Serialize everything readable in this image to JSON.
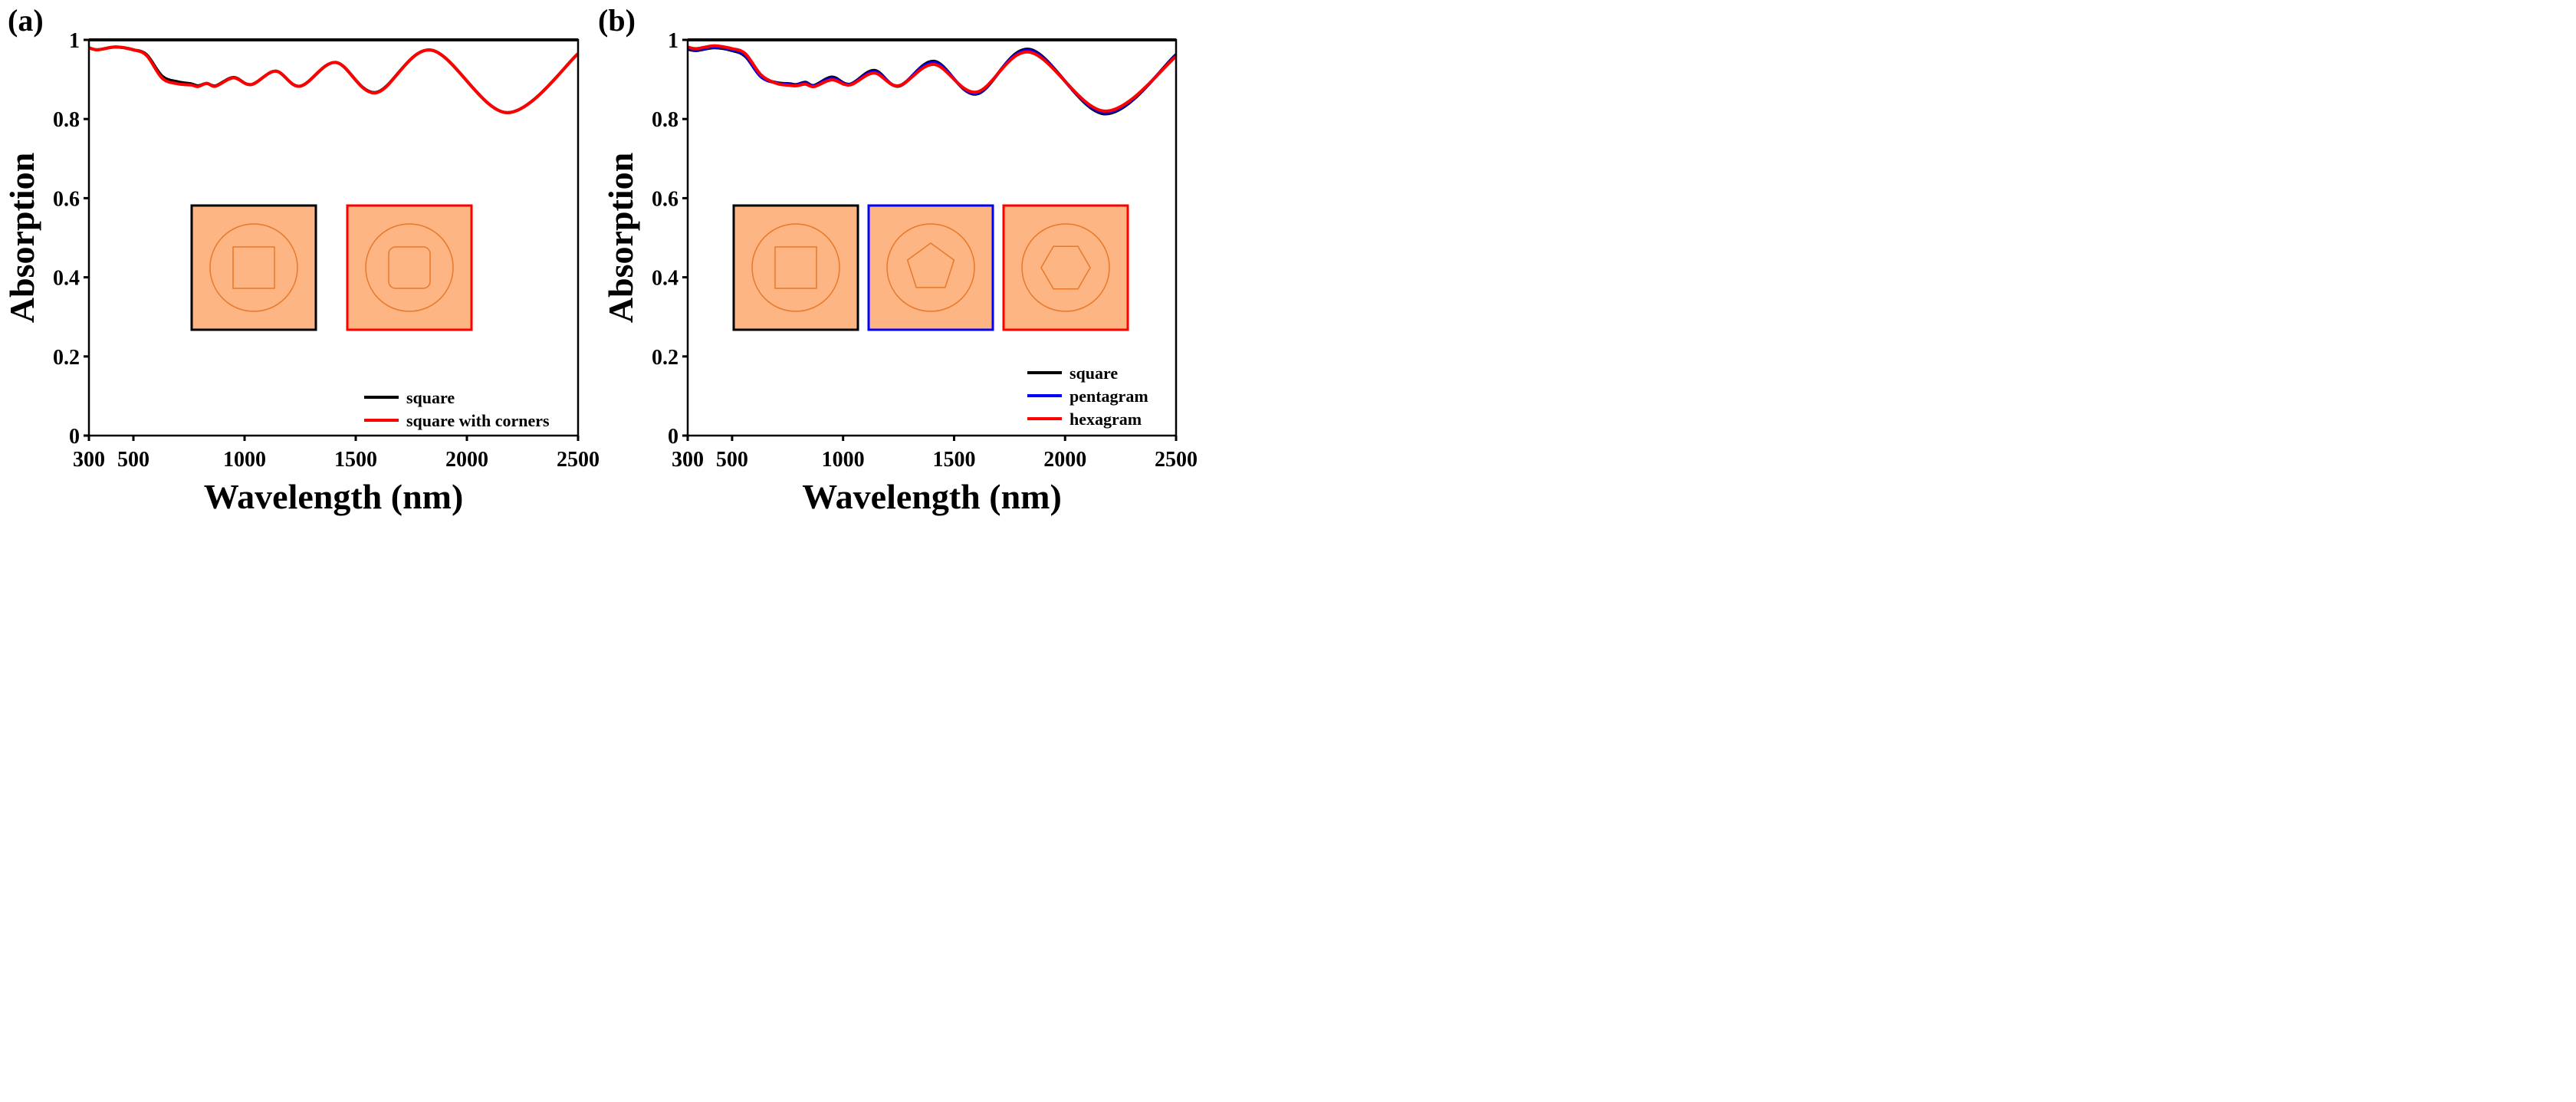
{
  "chart_data": [
    {
      "panel_label": "(a)",
      "type": "line",
      "xlabel": "Wavelength (nm)",
      "ylabel": "Absorption",
      "xlim": [
        300,
        2500
      ],
      "ylim": [
        0,
        1
      ],
      "xticks": [
        300,
        500,
        1000,
        1500,
        2000,
        2500
      ],
      "yticks": [
        0,
        0.2,
        0.4,
        0.6,
        0.8,
        1
      ],
      "ytick_labels": [
        "0",
        "0.2",
        "0.4",
        "0.6",
        "0.8",
        "1"
      ],
      "legend_position": "bottom-right",
      "series": [
        {
          "name": "square",
          "color": "#000000",
          "x": [
            300,
            340,
            420,
            500,
            560,
            630,
            700,
            760,
            790,
            830,
            870,
            950,
            1030,
            1140,
            1250,
            1410,
            1590,
            1840,
            2180,
            2500
          ],
          "y": [
            0.98,
            0.975,
            0.982,
            0.975,
            0.962,
            0.908,
            0.894,
            0.889,
            0.884,
            0.89,
            0.884,
            0.905,
            0.887,
            0.921,
            0.883,
            0.943,
            0.867,
            0.974,
            0.816,
            0.965
          ]
        },
        {
          "name": "square with corners",
          "color": "#ff0000",
          "x": [
            300,
            340,
            420,
            500,
            560,
            630,
            700,
            760,
            790,
            830,
            870,
            950,
            1030,
            1140,
            1250,
            1410,
            1590,
            1840,
            2180,
            2500
          ],
          "y": [
            0.98,
            0.975,
            0.982,
            0.975,
            0.96,
            0.903,
            0.889,
            0.886,
            0.882,
            0.89,
            0.883,
            0.904,
            0.887,
            0.921,
            0.883,
            0.943,
            0.866,
            0.974,
            0.816,
            0.965
          ]
        }
      ],
      "insets": [
        {
          "shape": "square",
          "border_color": "#000000"
        },
        {
          "shape": "rounded-square",
          "border_color": "#ff0000"
        }
      ]
    },
    {
      "panel_label": "(b)",
      "type": "line",
      "xlabel": "Wavelength (nm)",
      "ylabel": "Absorption",
      "xlim": [
        300,
        2500
      ],
      "ylim": [
        0,
        1
      ],
      "xticks": [
        300,
        500,
        1000,
        1500,
        2000,
        2500
      ],
      "yticks": [
        0,
        0.2,
        0.4,
        0.6,
        0.8,
        1
      ],
      "ytick_labels": [
        "0",
        "0.2",
        "0.4",
        "0.6",
        "0.8",
        "1"
      ],
      "legend_position": "bottom-right",
      "series": [
        {
          "name": "square",
          "color": "#000000",
          "x": [
            300,
            340,
            420,
            500,
            560,
            630,
            700,
            760,
            790,
            830,
            870,
            950,
            1030,
            1140,
            1250,
            1410,
            1600,
            1840,
            2180,
            2500
          ],
          "y": [
            0.977,
            0.973,
            0.98,
            0.973,
            0.958,
            0.907,
            0.892,
            0.889,
            0.887,
            0.893,
            0.885,
            0.906,
            0.888,
            0.923,
            0.883,
            0.946,
            0.863,
            0.976,
            0.813,
            0.963
          ]
        },
        {
          "name": "pentagram",
          "color": "#0000ff",
          "x": [
            300,
            340,
            420,
            500,
            560,
            630,
            700,
            760,
            790,
            830,
            870,
            950,
            1030,
            1140,
            1250,
            1410,
            1600,
            1840,
            2180,
            2500
          ],
          "y": [
            0.979,
            0.975,
            0.982,
            0.975,
            0.96,
            0.907,
            0.891,
            0.887,
            0.886,
            0.891,
            0.884,
            0.903,
            0.887,
            0.92,
            0.884,
            0.943,
            0.865,
            0.973,
            0.816,
            0.961
          ]
        },
        {
          "name": "hexagram",
          "color": "#ff0000",
          "x": [
            300,
            340,
            420,
            500,
            560,
            630,
            700,
            760,
            790,
            830,
            870,
            950,
            1030,
            1140,
            1250,
            1410,
            1600,
            1840,
            2180,
            2500
          ],
          "y": [
            0.982,
            0.978,
            0.985,
            0.978,
            0.965,
            0.912,
            0.89,
            0.885,
            0.884,
            0.888,
            0.882,
            0.899,
            0.886,
            0.916,
            0.884,
            0.938,
            0.868,
            0.969,
            0.82,
            0.958
          ]
        }
      ],
      "insets": [
        {
          "shape": "square",
          "border_color": "#000000"
        },
        {
          "shape": "pentagon",
          "border_color": "#0000ff"
        },
        {
          "shape": "hexagon",
          "border_color": "#ff0000"
        }
      ]
    }
  ]
}
